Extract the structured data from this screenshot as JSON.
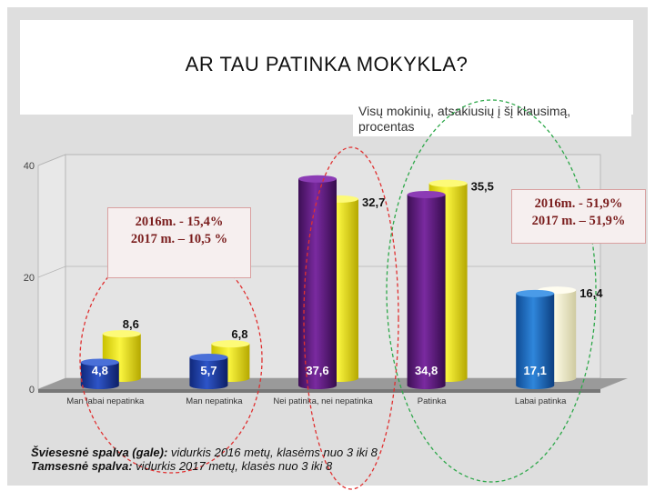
{
  "slide": {
    "title": "AR TAU PATINKA MOKYKLA?",
    "subtitle": "Visų mokinių, atsakiusių į šį klausimą, procentas",
    "callout_left": [
      "2016m. - 15,4%",
      "2017 m. – 10,5 %"
    ],
    "callout_right": [
      "2016m. - 51,9%",
      "2017 m. – 51,9%"
    ],
    "notes": [
      {
        "label": "Šviesesnė spalva (gale):",
        "text": " vidurkis 2016 metų, klasėms nuo  3 iki  8"
      },
      {
        "label": "Tamsesnė spalva:",
        "text": " vidurkis 2017 metų, klasės nuo 3 iki  8"
      }
    ]
  },
  "chart_data": {
    "type": "bar",
    "categories": [
      "Man labai nepatinka",
      "Man nepatinka",
      "Nei patinka, nei nepatinka",
      "Patinka",
      "Labai patinka"
    ],
    "series": [
      {
        "values": [
          8.6,
          6.8,
          32.7,
          35.5,
          16.4
        ],
        "labels": [
          "8,6",
          "6,8",
          "32,7",
          "35,5",
          "16,4"
        ]
      },
      {
        "values": [
          4.8,
          5.7,
          37.6,
          34.8,
          17.1
        ],
        "labels": [
          "4,8",
          "5,7",
          "37,6",
          "34,8",
          "17,1"
        ]
      }
    ],
    "yticks": [
      "0",
      "20",
      "40"
    ],
    "ylim": [
      0,
      40
    ],
    "colors": {
      "light_yellow": "#f0ea1a",
      "light_cream": "#f3f0c8",
      "dark_blue": "#1b3a9a",
      "dark_purple": "#5a1a78",
      "dark_blue_light": "#1a5fb4"
    }
  }
}
